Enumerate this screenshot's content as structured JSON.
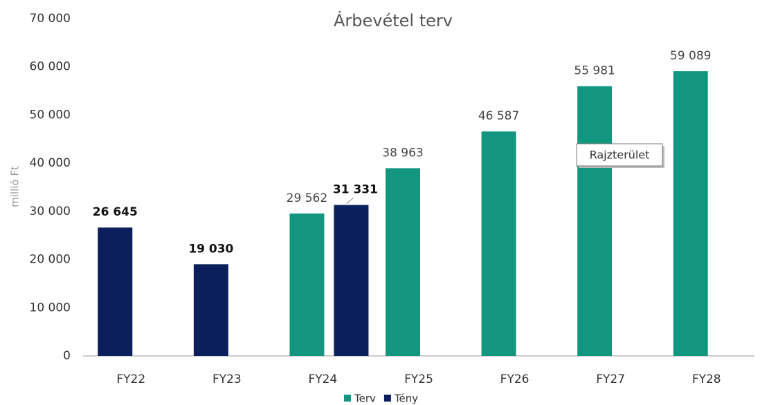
{
  "chart_data": {
    "type": "bar",
    "title": "Árbevétel terv",
    "y_axis_label": "millió Ft",
    "categories": [
      "FY22",
      "FY23",
      "FY24",
      "FY25",
      "FY26",
      "FY27",
      "FY28"
    ],
    "series": [
      {
        "name": "Terv",
        "color": "#12967f",
        "values": [
          null,
          null,
          29562,
          38963,
          46587,
          55981,
          59089
        ],
        "value_labels": [
          null,
          null,
          "29 562",
          "38 963",
          "46 587",
          "55 981",
          "59 089"
        ]
      },
      {
        "name": "Tény",
        "color": "#0b1f5c",
        "values": [
          26645,
          19030,
          31331,
          null,
          null,
          null,
          null
        ],
        "value_labels": [
          "26 645",
          "19 030",
          "31 331",
          null,
          null,
          null,
          null
        ]
      }
    ],
    "ylim": [
      0,
      70000
    ],
    "yticks": [
      0,
      {
        "value": 10000,
        "label": "10 000"
      },
      {
        "value": 20000,
        "label": "20 000"
      },
      {
        "value": 30000,
        "label": "30 000"
      },
      {
        "value": 40000,
        "label": "40 000"
      },
      {
        "value": 50000,
        "label": "50 000"
      },
      {
        "value": 60000,
        "label": "60 000"
      },
      {
        "value": 70000,
        "label": "70 000"
      }
    ],
    "grid": false,
    "legend": "bottom",
    "tooltip": "Rajzterület"
  }
}
